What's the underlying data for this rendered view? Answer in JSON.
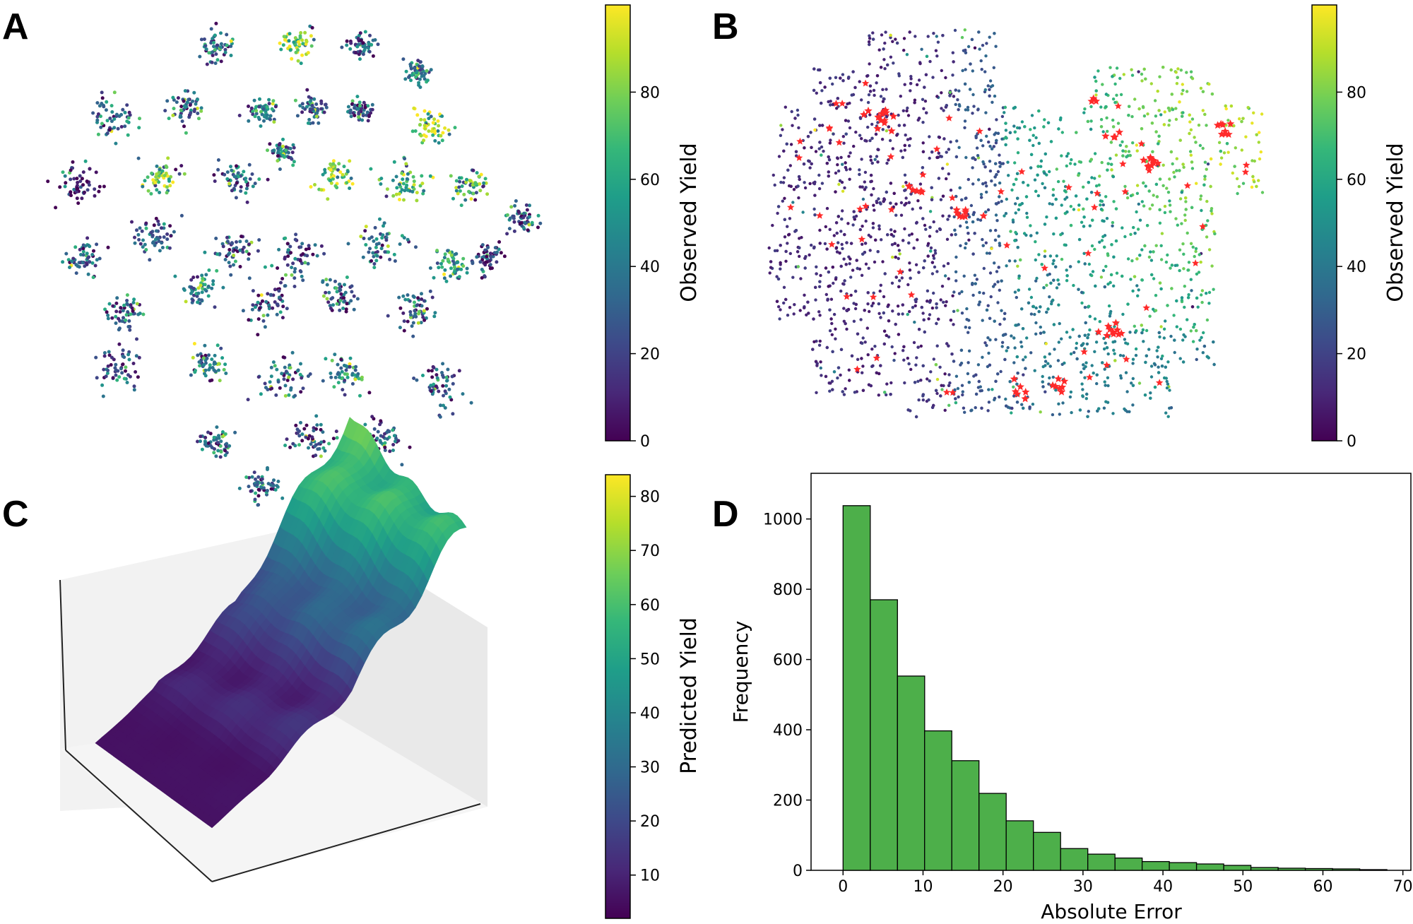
{
  "colormap": [
    "#440154",
    "#482878",
    "#3e4989",
    "#31688e",
    "#26828e",
    "#1f9e89",
    "#35b779",
    "#6ece58",
    "#b5de2b",
    "#fde725"
  ],
  "bar_color": "#4daf4a",
  "highlight_color": "#ff2a2a",
  "chart_data": [
    {
      "panel": "A",
      "type": "scatter",
      "title": "",
      "colorbar": {
        "label": "Observed Yield",
        "ticks": [
          "0",
          "20",
          "40",
          "60",
          "80"
        ],
        "range": [
          0,
          100
        ]
      }
    },
    {
      "panel": "B",
      "type": "scatter",
      "title": "",
      "highlighted": "red star markers",
      "colorbar": {
        "label": "Observed Yield",
        "ticks": [
          "0",
          "20",
          "40",
          "60",
          "80"
        ],
        "range": [
          0,
          100
        ]
      }
    },
    {
      "panel": "C",
      "type": "surface",
      "title": "",
      "colorbar": {
        "label": "Predicted Yield",
        "ticks": [
          "10",
          "20",
          "30",
          "40",
          "50",
          "60",
          "70",
          "80"
        ],
        "range": [
          2,
          84
        ]
      }
    },
    {
      "panel": "D",
      "type": "bar",
      "title": "",
      "xlabel": "Absolute Error",
      "ylabel": "Frequency",
      "xlim": [
        -4,
        71
      ],
      "ylim": [
        0,
        1130
      ],
      "xticks": [
        "0",
        "10",
        "20",
        "30",
        "40",
        "50",
        "60",
        "70"
      ],
      "yticks": [
        "0",
        "200",
        "400",
        "600",
        "800",
        "1000"
      ],
      "bin_edges": [
        0,
        3.4,
        6.8,
        10.2,
        13.6,
        17.0,
        20.4,
        23.8,
        27.2,
        30.6,
        34.0,
        37.4,
        40.8,
        44.2,
        47.6,
        51.0,
        54.4,
        57.8,
        61.2,
        64.6,
        68.0
      ],
      "values": [
        1038,
        770,
        553,
        397,
        312,
        219,
        141,
        108,
        62,
        46,
        35,
        25,
        22,
        18,
        14,
        8,
        6,
        5,
        4,
        2
      ]
    }
  ]
}
